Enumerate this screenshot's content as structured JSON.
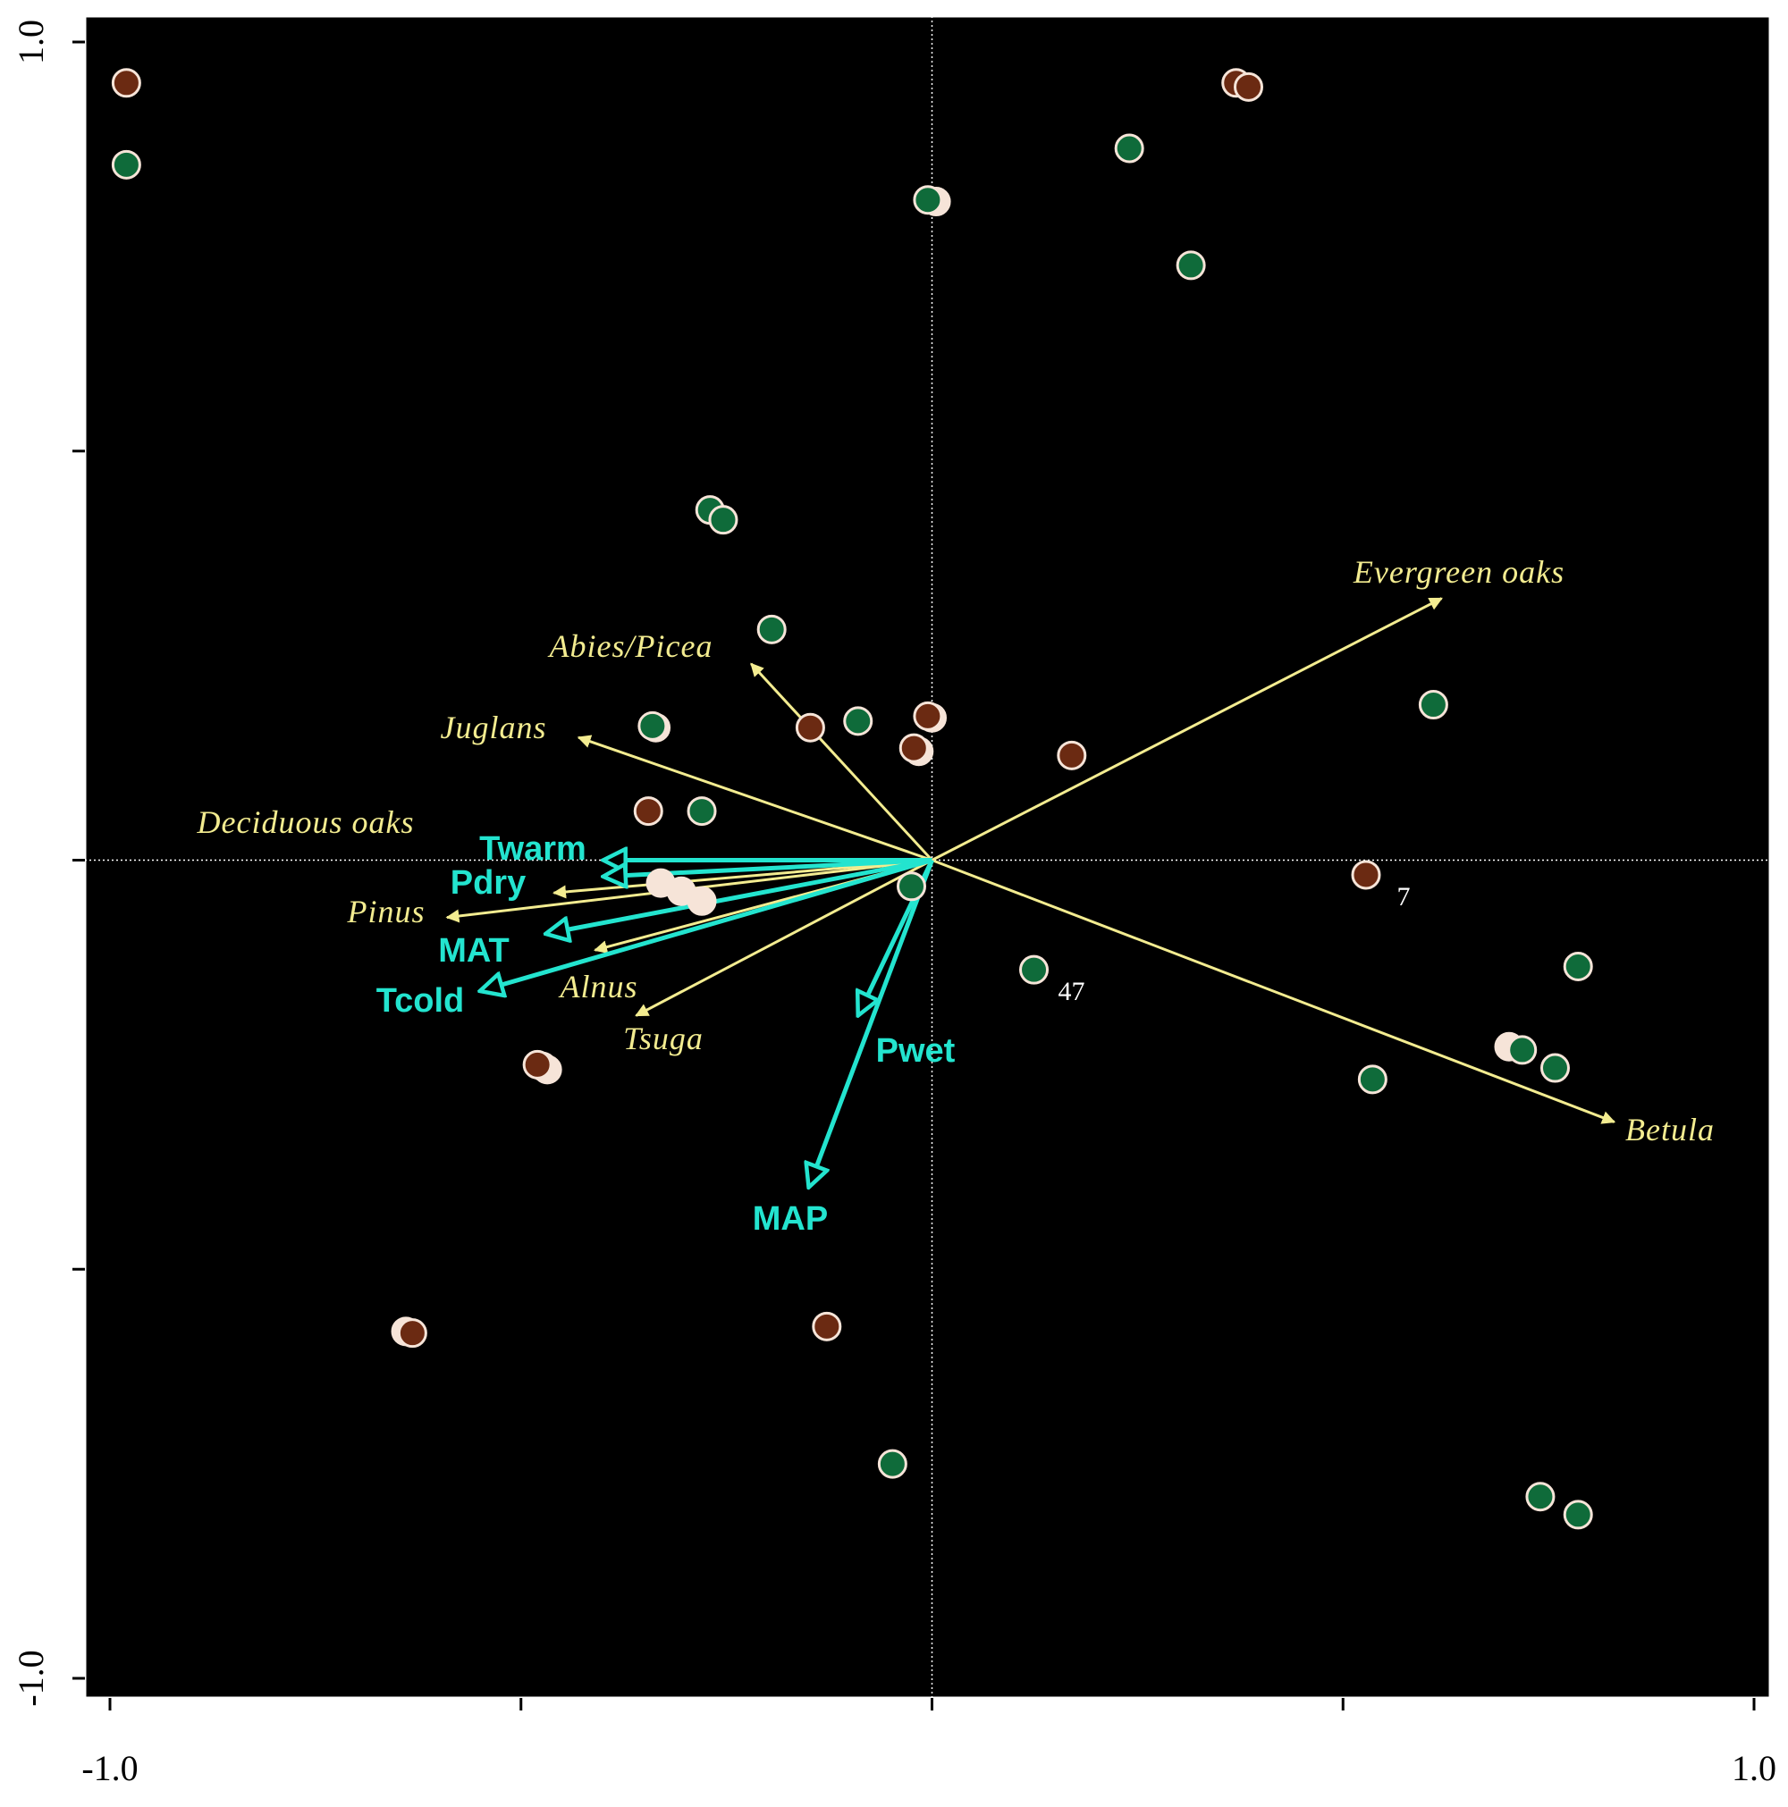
{
  "chart_data": {
    "type": "scatter",
    "subtype": "ordination-biplot",
    "xlim": [
      -1.0,
      1.0
    ],
    "ylim": [
      -1.0,
      1.0
    ],
    "x_tick_labels": [
      "-1.0",
      "1.0"
    ],
    "y_tick_labels": [
      "1.0",
      "-1.0"
    ],
    "x_ticks": [
      -1.0,
      -0.5,
      0.0,
      0.5,
      1.0
    ],
    "y_ticks": [
      -1.0,
      -0.5,
      0.0,
      0.5,
      1.0
    ],
    "zero_lines": true,
    "background": "#000000",
    "colors": {
      "species_arrow": "#f3ec90",
      "env_arrow": "#23e4cf",
      "point_brown": "#6b2a12",
      "point_green": "#0f6b3a",
      "point_edge": "#f6e4d8",
      "frame": "#ffffff"
    },
    "species_arrows": [
      {
        "name": "Evergreen oaks",
        "x": 0.62,
        "y": 0.32
      },
      {
        "name": "Abies/Picea",
        "x": -0.22,
        "y": 0.24
      },
      {
        "name": "Juglans",
        "x": -0.43,
        "y": 0.15
      },
      {
        "name": "Deciduous oaks",
        "x": -0.4,
        "y": 0.0
      },
      {
        "name": "Pinus",
        "x": -0.59,
        "y": -0.07
      },
      {
        "name": "Alnus",
        "x": -0.41,
        "y": -0.11
      },
      {
        "name": "Tsuga",
        "x": -0.36,
        "y": -0.19
      },
      {
        "name": "Betula",
        "x": 0.83,
        "y": -0.32
      },
      {
        "name": "",
        "x": -0.46,
        "y": -0.04
      }
    ],
    "env_arrows": [
      {
        "name": "Twarm",
        "x": -0.4,
        "y": 0.0
      },
      {
        "name": "Pdry",
        "x": -0.4,
        "y": -0.02
      },
      {
        "name": "MAT",
        "x": -0.47,
        "y": -0.09
      },
      {
        "name": "Tcold",
        "x": -0.55,
        "y": -0.16
      },
      {
        "name": "Pwet",
        "x": -0.09,
        "y": -0.19
      },
      {
        "name": "MAP",
        "x": -0.15,
        "y": -0.4
      }
    ],
    "samples": [
      {
        "x": -0.98,
        "y": 0.95,
        "group": "brown"
      },
      {
        "x": -0.98,
        "y": 0.85,
        "group": "green"
      },
      {
        "x": 0.37,
        "y": 0.95,
        "group": "brown"
      },
      {
        "x": 0.385,
        "y": 0.945,
        "group": "brown"
      },
      {
        "x": 0.24,
        "y": 0.87,
        "group": "green"
      },
      {
        "x": 0.005,
        "y": 0.805,
        "group": "light"
      },
      {
        "x": -0.005,
        "y": 0.807,
        "group": "green"
      },
      {
        "x": 0.315,
        "y": 0.727,
        "group": "green"
      },
      {
        "x": -0.27,
        "y": 0.428,
        "group": "green"
      },
      {
        "x": -0.254,
        "y": 0.416,
        "group": "green"
      },
      {
        "x": -0.195,
        "y": 0.282,
        "group": "green"
      },
      {
        "x": 0.61,
        "y": 0.19,
        "group": "green"
      },
      {
        "x": -0.336,
        "y": 0.162,
        "group": "light"
      },
      {
        "x": -0.34,
        "y": 0.164,
        "group": "green"
      },
      {
        "x": -0.148,
        "y": 0.162,
        "group": "brown"
      },
      {
        "x": -0.09,
        "y": 0.17,
        "group": "green"
      },
      {
        "x": 0.0,
        "y": 0.174,
        "group": "light"
      },
      {
        "x": -0.005,
        "y": 0.176,
        "group": "brown"
      },
      {
        "x": -0.016,
        "y": 0.133,
        "group": "light"
      },
      {
        "x": -0.022,
        "y": 0.137,
        "group": "brown"
      },
      {
        "x": 0.17,
        "y": 0.128,
        "group": "brown"
      },
      {
        "x": -0.345,
        "y": 0.06,
        "group": "brown"
      },
      {
        "x": -0.28,
        "y": 0.06,
        "group": "green"
      },
      {
        "x": 0.528,
        "y": -0.018,
        "group": "brown",
        "label": "7"
      },
      {
        "x": -0.33,
        "y": -0.028,
        "group": "light"
      },
      {
        "x": -0.305,
        "y": -0.038,
        "group": "light"
      },
      {
        "x": -0.28,
        "y": -0.05,
        "group": "light"
      },
      {
        "x": -0.025,
        "y": -0.032,
        "group": "green"
      },
      {
        "x": 0.124,
        "y": -0.134,
        "group": "green",
        "label": "47"
      },
      {
        "x": 0.786,
        "y": -0.13,
        "group": "green"
      },
      {
        "x": 0.702,
        "y": -0.228,
        "group": "light"
      },
      {
        "x": 0.718,
        "y": -0.232,
        "group": "green"
      },
      {
        "x": 0.758,
        "y": -0.254,
        "group": "green"
      },
      {
        "x": 0.536,
        "y": -0.268,
        "group": "green"
      },
      {
        "x": -0.468,
        "y": -0.256,
        "group": "light"
      },
      {
        "x": -0.474,
        "y": -0.252,
        "group": "light"
      },
      {
        "x": -0.48,
        "y": -0.25,
        "group": "brown"
      },
      {
        "x": -0.64,
        "y": -0.576,
        "group": "light"
      },
      {
        "x": -0.632,
        "y": -0.578,
        "group": "brown"
      },
      {
        "x": -0.128,
        "y": -0.57,
        "group": "brown"
      },
      {
        "x": -0.048,
        "y": -0.738,
        "group": "green"
      },
      {
        "x": 0.74,
        "y": -0.778,
        "group": "green"
      },
      {
        "x": 0.786,
        "y": -0.8,
        "group": "green"
      }
    ]
  }
}
